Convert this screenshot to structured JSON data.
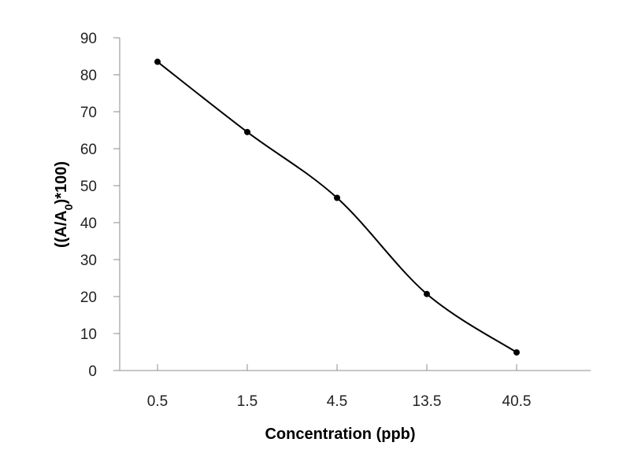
{
  "chart_data": {
    "type": "line",
    "title": "",
    "categories": [
      "0.5",
      "1.5",
      "4.5",
      "13.5",
      "40.5"
    ],
    "series": [
      {
        "values": [
          83.5,
          64.5,
          46.7,
          20.7,
          4.9
        ]
      }
    ],
    "xlabel": "Concentration (ppb)",
    "ylabel": "((A/A0)*100)",
    "ylabel_parts": {
      "before": "((A/A",
      "sub": "0",
      "after": ")*100)"
    },
    "ylim": [
      0,
      90
    ],
    "yticks": [
      "0",
      "10",
      "20",
      "30",
      "40",
      "50",
      "60",
      "70",
      "80",
      "90"
    ],
    "grid": false,
    "smooth": true,
    "line_color": "#000000",
    "marker_color": "#000000"
  }
}
